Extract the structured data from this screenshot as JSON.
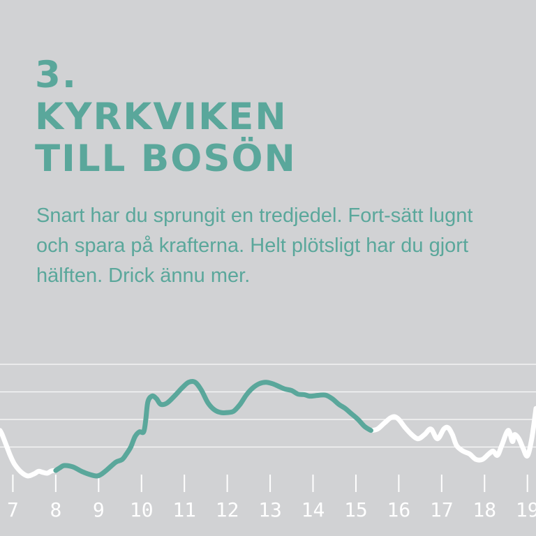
{
  "heading": {
    "number": "3.",
    "line1": "KYRKVIKEN",
    "line2": "TILL BOSÖN"
  },
  "intro": "Snart har du sprungit en tredjedel. Fort-sätt lugnt och spara på krafterna. Helt plötsligt har du gjort hälften. Drick ännu mer.",
  "colors": {
    "background": "#d1d2d4",
    "accent": "#5aa79b",
    "line_other": "#ffffff",
    "grid": "#ffffff"
  },
  "chart_data": {
    "type": "line",
    "title": "",
    "xlabel": "",
    "ylabel": "",
    "x_ticks": [
      7,
      8,
      9,
      10,
      11,
      12,
      13,
      14,
      15,
      16,
      17,
      18,
      19
    ],
    "xlim": [
      6.7,
      19.2
    ],
    "ylim": [
      0,
      4
    ],
    "grid": true,
    "y_gridlines": [
      1,
      2,
      3,
      4
    ],
    "highlight_range": [
      8,
      15.35
    ],
    "series": [
      {
        "x": [
          6.7,
          6.75,
          6.85,
          6.95,
          7.05,
          7.2,
          7.35,
          7.5,
          7.6,
          7.7,
          7.8,
          7.9,
          8.0,
          8.1,
          8.2,
          8.4,
          8.6,
          8.8,
          8.95,
          9.05,
          9.2,
          9.4,
          9.55,
          9.65,
          9.75,
          9.85,
          9.95,
          10.05,
          10.1,
          10.15,
          10.25,
          10.35,
          10.45,
          10.6,
          10.8,
          10.95,
          11.1,
          11.25,
          11.4,
          11.55,
          11.7,
          11.85,
          12.0,
          12.15,
          12.3,
          12.45,
          12.6,
          12.75,
          12.9,
          13.05,
          13.2,
          13.35,
          13.5,
          13.65,
          13.8,
          13.9,
          14.0,
          14.15,
          14.3,
          14.45,
          14.6,
          14.75,
          14.9,
          15.05,
          15.2,
          15.35,
          15.5,
          15.65,
          15.8,
          15.9,
          16.0,
          16.15,
          16.3,
          16.45,
          16.6,
          16.75,
          16.9,
          17.05,
          17.15,
          17.25,
          17.35,
          17.5,
          17.65,
          17.8,
          17.95,
          18.1,
          18.2,
          18.3,
          18.4,
          18.55,
          18.65,
          18.7,
          18.8,
          18.9,
          19.0,
          19.1,
          19.2
        ],
        "y": [
          1.6,
          1.45,
          1.05,
          0.65,
          0.35,
          0.08,
          -0.05,
          0.03,
          0.12,
          0.08,
          0.05,
          0.13,
          0.15,
          0.25,
          0.33,
          0.28,
          0.12,
          0.0,
          -0.05,
          0.0,
          0.18,
          0.45,
          0.55,
          0.75,
          1.0,
          1.38,
          1.55,
          1.55,
          2.0,
          2.65,
          2.85,
          2.75,
          2.55,
          2.6,
          2.9,
          3.15,
          3.35,
          3.35,
          3.05,
          2.6,
          2.35,
          2.25,
          2.25,
          2.3,
          2.55,
          2.9,
          3.15,
          3.3,
          3.35,
          3.3,
          3.2,
          3.1,
          3.05,
          2.92,
          2.9,
          2.85,
          2.85,
          2.88,
          2.88,
          2.75,
          2.55,
          2.4,
          2.2,
          2.0,
          1.75,
          1.6,
          1.65,
          1.85,
          2.05,
          2.1,
          2.0,
          1.7,
          1.45,
          1.3,
          1.45,
          1.65,
          1.3,
          1.65,
          1.7,
          1.45,
          1.05,
          0.85,
          0.75,
          0.55,
          0.55,
          0.75,
          0.85,
          0.7,
          1.05,
          1.6,
          1.2,
          1.45,
          1.3,
          0.95,
          0.68,
          1.3,
          2.4
        ]
      }
    ]
  }
}
